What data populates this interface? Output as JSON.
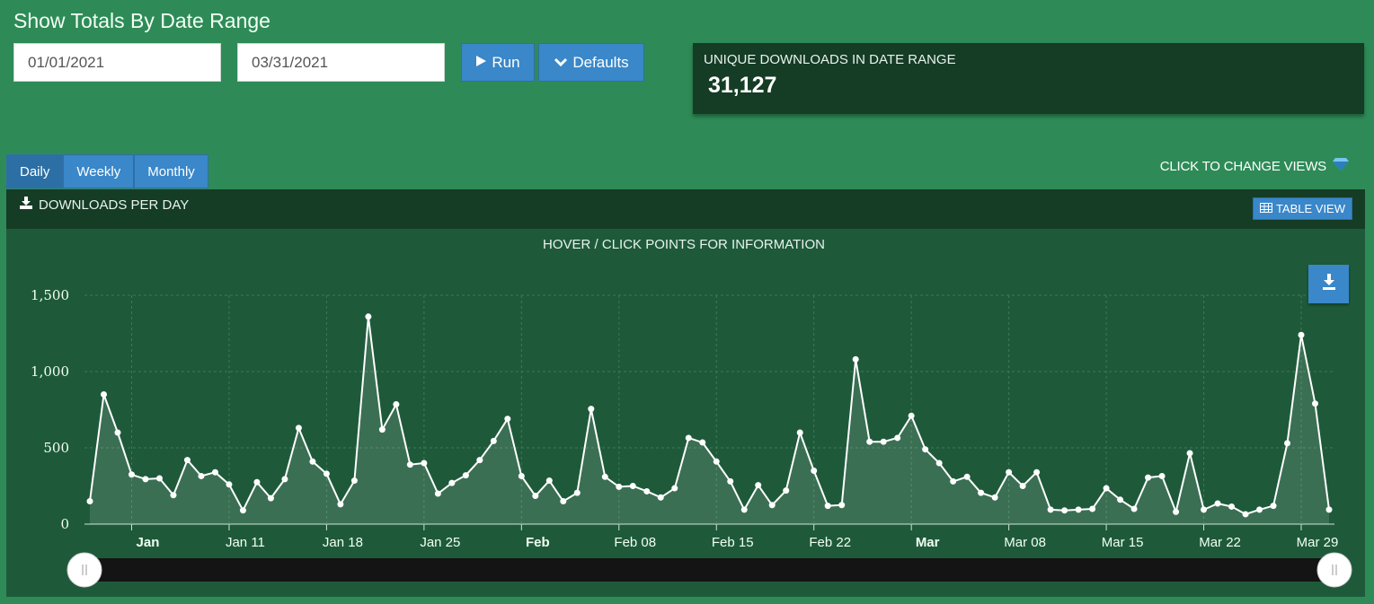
{
  "header": {
    "title": "Show Totals By Date Range"
  },
  "range": {
    "start_value": "01/01/2021",
    "end_value": "03/31/2021"
  },
  "buttons": {
    "run_label": "Run",
    "defaults_label": "Defaults"
  },
  "stat": {
    "label": "UNIQUE DOWNLOADS IN DATE RANGE",
    "value": "31,127"
  },
  "tabs": [
    {
      "label": "Daily",
      "active": true
    },
    {
      "label": "Weekly",
      "active": false
    },
    {
      "label": "Monthly",
      "active": false
    }
  ],
  "change_views_label": "CLICK TO CHANGE VIEWS",
  "panel": {
    "title": "DOWNLOADS PER DAY",
    "table_view_label": "TABLE VIEW"
  },
  "colors": {
    "background": "#2e8b57",
    "panel": "#153c25",
    "chart_bg": "#1e5a3a",
    "button": "#3a87c9",
    "line": "#ffffff"
  },
  "icons": {
    "run": "play-icon",
    "defaults": "chevron-down-icon",
    "change_views": "gem-icon",
    "panel": "download-icon",
    "table_view": "table-icon",
    "export": "download-icon"
  },
  "chart_data": {
    "type": "area",
    "subtitle": "HOVER / CLICK POINTS FOR INFORMATION",
    "x_start": "2021-01-01",
    "x_end": "2021-03-31",
    "x_ticks": [
      {
        "label": "Jan",
        "bold": true,
        "day": 3
      },
      {
        "label": "Jan 11",
        "bold": false,
        "day": 10
      },
      {
        "label": "Jan 18",
        "bold": false,
        "day": 17
      },
      {
        "label": "Jan 25",
        "bold": false,
        "day": 24
      },
      {
        "label": "Feb",
        "bold": true,
        "day": 31
      },
      {
        "label": "Feb 08",
        "bold": false,
        "day": 38
      },
      {
        "label": "Feb 15",
        "bold": false,
        "day": 45
      },
      {
        "label": "Feb 22",
        "bold": false,
        "day": 52
      },
      {
        "label": "Mar",
        "bold": true,
        "day": 59
      },
      {
        "label": "Mar 08",
        "bold": false,
        "day": 66
      },
      {
        "label": "Mar 15",
        "bold": false,
        "day": 73
      },
      {
        "label": "Mar 22",
        "bold": false,
        "day": 80
      },
      {
        "label": "Mar 29",
        "bold": false,
        "day": 87
      }
    ],
    "y_ticks": [
      "0",
      "500",
      "1,000",
      "1,500"
    ],
    "ylim": [
      0,
      1500
    ],
    "grid": true,
    "series": [
      {
        "values": [
          150,
          850,
          600,
          325,
          295,
          300,
          190,
          420,
          315,
          340,
          260,
          90,
          275,
          170,
          295,
          630,
          410,
          330,
          130,
          285,
          1360,
          620,
          785,
          390,
          400,
          200,
          270,
          320,
          420,
          545,
          690,
          315,
          185,
          285,
          150,
          205,
          755,
          310,
          245,
          250,
          215,
          175,
          235,
          565,
          535,
          410,
          280,
          95,
          255,
          125,
          220,
          600,
          350,
          120,
          125,
          1080,
          540,
          540,
          565,
          710,
          490,
          400,
          280,
          310,
          205,
          175,
          340,
          250,
          340,
          95,
          90,
          95,
          100,
          235,
          160,
          100,
          305,
          315,
          80,
          465,
          95,
          135,
          115,
          65,
          95,
          120,
          530,
          1240,
          790,
          95
        ]
      }
    ]
  }
}
